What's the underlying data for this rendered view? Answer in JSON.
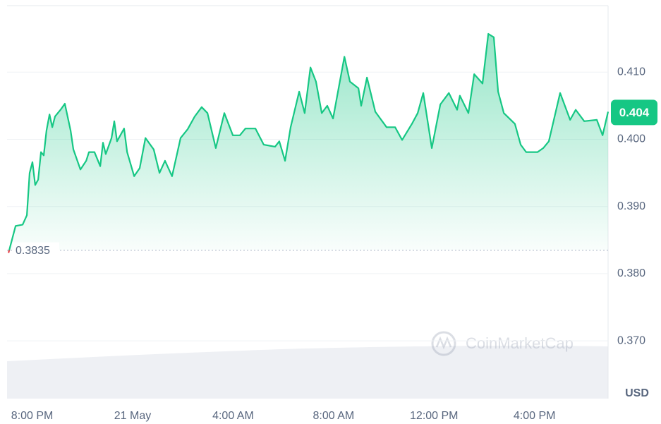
{
  "chart_data": {
    "type": "line",
    "x": [
      0.06,
      0.34,
      0.62,
      0.79,
      0.9,
      1.01,
      1.12,
      1.24,
      1.35,
      1.46,
      1.57,
      1.69,
      1.8,
      1.91,
      2.13,
      2.3,
      2.53,
      2.64,
      2.92,
      3.15,
      3.26,
      3.48,
      3.71,
      3.82,
      3.93,
      4.16,
      4.27,
      4.38,
      4.66,
      4.78,
      5.06,
      5.28,
      5.51,
      5.84,
      6.07,
      6.29,
      6.57,
      6.91,
      7.19,
      7.47,
      7.75,
      7.98,
      8.31,
      8.65,
      8.99,
      9.27,
      9.49,
      9.89,
      10.22,
      10.67,
      10.84,
      11.07,
      11.29,
      11.63,
      11.85,
      12.08,
      12.3,
      12.53,
      12.75,
      12.98,
      13.43,
      13.65,
      13.99,
      14.1,
      14.33,
      14.66,
      15.11,
      15.45,
      15.73,
      16.12,
      16.35,
      16.57,
      16.91,
      17.25,
      17.59,
      17.92,
      18.03,
      18.37,
      18.6,
      18.93,
      19.16,
      19.38,
      19.55,
      19.78,
      20.22,
      20.45,
      20.67,
      21.12,
      21.35,
      21.57,
      22.02,
      22.42,
      22.64,
      22.98,
      23.48,
      23.71,
      23.93
    ],
    "series": [
      {
        "color": "#16c784",
        "values": [
          0.3831,
          0.3871,
          0.3873,
          0.3887,
          0.395,
          0.3966,
          0.3932,
          0.394,
          0.3981,
          0.3976,
          0.4013,
          0.4037,
          0.4018,
          0.4034,
          0.4044,
          0.4053,
          0.4013,
          0.3985,
          0.3955,
          0.3968,
          0.3981,
          0.3981,
          0.396,
          0.3995,
          0.3978,
          0.4002,
          0.4027,
          0.3997,
          0.4016,
          0.3981,
          0.3945,
          0.3957,
          0.4002,
          0.3985,
          0.395,
          0.3968,
          0.3945,
          0.4002,
          0.4015,
          0.4034,
          0.4048,
          0.4039,
          0.3987,
          0.4039,
          0.4006,
          0.4006,
          0.4016,
          0.4016,
          0.3992,
          0.3989,
          0.3997,
          0.3968,
          0.4018,
          0.4071,
          0.4039,
          0.4107,
          0.4086,
          0.4039,
          0.405,
          0.4031,
          0.4123,
          0.4086,
          0.4076,
          0.405,
          0.4092,
          0.4041,
          0.4018,
          0.4018,
          0.3999,
          0.4023,
          0.4039,
          0.4069,
          0.3987,
          0.4052,
          0.4069,
          0.4044,
          0.4065,
          0.4039,
          0.4097,
          0.4083,
          0.4157,
          0.4152,
          0.4071,
          0.4039,
          0.4023,
          0.3992,
          0.3981,
          0.3981,
          0.3987,
          0.3997,
          0.4069,
          0.4029,
          0.4044,
          0.4027,
          0.4029,
          0.4006,
          0.4041
        ]
      }
    ],
    "down_color": "#ea3943",
    "xlim": [
      0,
      23.93
    ],
    "xticks": [
      {
        "value": 1,
        "label": "8:00 PM"
      },
      {
        "value": 5,
        "label": "21 May"
      },
      {
        "value": 9,
        "label": "4:00 AM"
      },
      {
        "value": 13,
        "label": "8:00 AM"
      },
      {
        "value": 17,
        "label": "12:00 PM"
      },
      {
        "value": 21,
        "label": "4:00 PM"
      }
    ],
    "ylim": [
      0.3614,
      0.4199
    ],
    "yticks": [
      {
        "value": 0.37,
        "label": "0.370"
      },
      {
        "value": 0.38,
        "label": "0.380"
      },
      {
        "value": 0.39,
        "label": "0.390"
      },
      {
        "value": 0.4,
        "label": "0.400"
      },
      {
        "value": 0.41,
        "label": "0.410"
      }
    ],
    "grid": true,
    "baseline": 0.3835,
    "current_price": 0.404,
    "currency": "USD",
    "watermark": "CoinMarketCap"
  }
}
